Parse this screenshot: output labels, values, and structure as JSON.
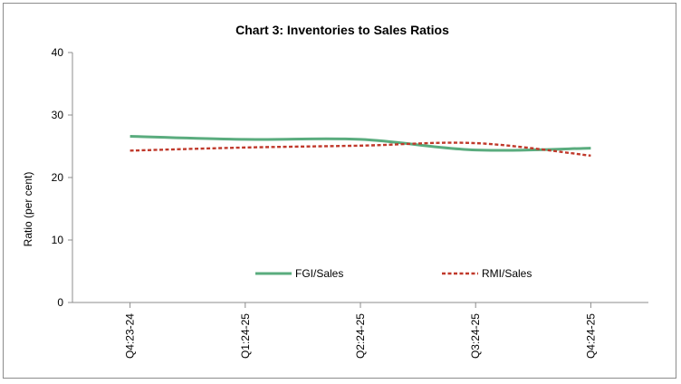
{
  "chart_data": {
    "type": "line",
    "title": "Chart 3: Inventories to Sales Ratios",
    "xlabel": "",
    "ylabel": "Ratio (per cent)",
    "categories": [
      "Q4:23-24",
      "Q1:24-25",
      "Q2:24-25",
      "Q3:24-25",
      "Q4:24-25"
    ],
    "ylim": [
      0,
      40
    ],
    "yticks": [
      "0",
      "10",
      "20",
      "30",
      "40"
    ],
    "grid": false,
    "legend_position": "bottom-center-inside",
    "series": [
      {
        "name": "FGI/Sales",
        "values": [
          26.6,
          26.1,
          26.1,
          24.4,
          24.7
        ],
        "color": "#5aac7e",
        "style": "solid"
      },
      {
        "name": "RMI/Sales",
        "values": [
          24.3,
          24.8,
          25.1,
          25.5,
          23.5
        ],
        "color": "#c0392b",
        "style": "dashed"
      }
    ]
  }
}
